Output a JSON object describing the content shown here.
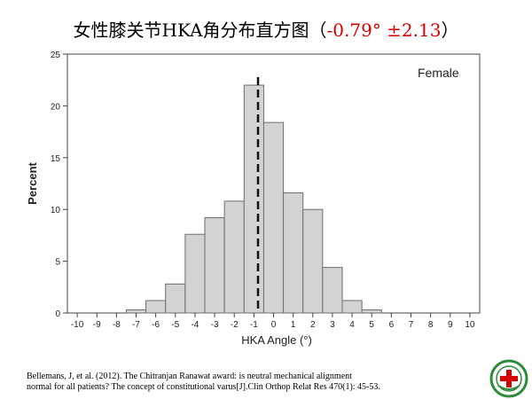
{
  "title": {
    "text": "女性膝关节HKA角分布直方图（",
    "stat": "-0.79°  ±2.13",
    "close": "）"
  },
  "chart_data": {
    "type": "bar",
    "title": "",
    "annotation": "Female",
    "xlabel": "HKA Angle (°)",
    "ylabel": "Percent",
    "xlim": [
      -10.5,
      10.5
    ],
    "ylim": [
      0,
      25
    ],
    "xticks": [
      -10,
      -9,
      -8,
      -7,
      -6,
      -5,
      -4,
      -3,
      -2,
      -1,
      0,
      1,
      2,
      3,
      4,
      5,
      6,
      7,
      8,
      9,
      10
    ],
    "yticks": [
      0,
      5,
      10,
      15,
      20,
      25
    ],
    "bin_width": 1,
    "bins": [
      {
        "x": -7,
        "value": 0.3
      },
      {
        "x": -6,
        "value": 1.2
      },
      {
        "x": -5,
        "value": 2.8
      },
      {
        "x": -4,
        "value": 7.6
      },
      {
        "x": -3,
        "value": 9.2
      },
      {
        "x": -2,
        "value": 10.8
      },
      {
        "x": -1,
        "value": 22.0
      },
      {
        "x": 0,
        "value": 18.4
      },
      {
        "x": 1,
        "value": 11.6
      },
      {
        "x": 2,
        "value": 10.0
      },
      {
        "x": 3,
        "value": 4.4
      },
      {
        "x": 4,
        "value": 1.2
      },
      {
        "x": 5,
        "value": 0.3
      }
    ],
    "reference_line": {
      "x": -0.79,
      "style": "dashed"
    },
    "bar_color": "#d3d3d3",
    "bar_edge_color": "#6e6e6e"
  },
  "reference": {
    "line1": "Bellemans, J, et al. (2012). The Chitranjan Ranawat award: is neutral mechanical alignment",
    "line2": "normal for all patients? The concept of constitutional varus[J].Clin Orthop Relat Res 470(1): 45-53."
  },
  "logo": {
    "color": "#2e8b3a",
    "accent": "#d40000"
  }
}
